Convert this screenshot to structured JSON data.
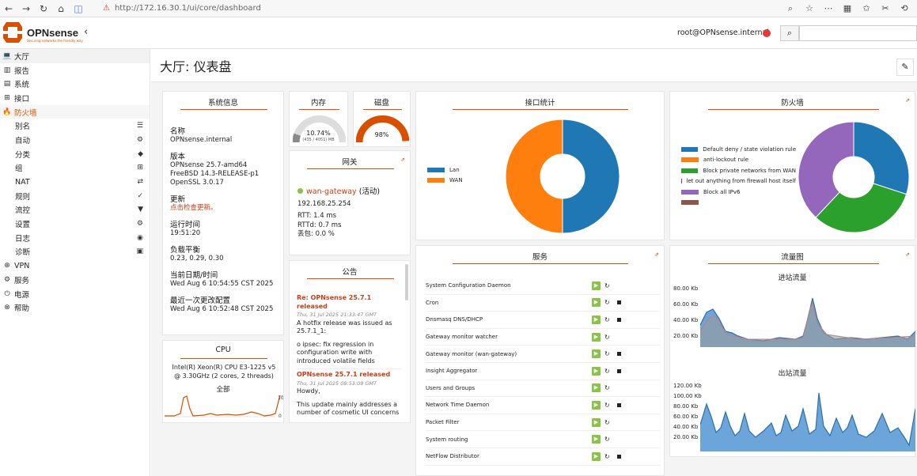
{
  "browser": {
    "url": "http://172.16.30.1/ui/core/dashboard"
  },
  "header": {
    "brand": "OPNsense",
    "tagline": "Securing networks the friendly way",
    "user": "root@OPNsense.internal"
  },
  "sidebar": {
    "items": [
      {
        "label": "大厅",
        "icon": "laptop-icon",
        "glyph": "💻"
      },
      {
        "label": "报告",
        "icon": "chart-icon",
        "glyph": "▥"
      },
      {
        "label": "系统",
        "icon": "server-icon",
        "glyph": "▤"
      },
      {
        "label": "接口",
        "icon": "network-icon",
        "glyph": "⊞"
      },
      {
        "label": "防火墙",
        "icon": "fire-icon",
        "glyph": "🔥"
      }
    ],
    "sub": [
      {
        "label": "别名",
        "icon": "list-icon",
        "glyph": "☰"
      },
      {
        "label": "自动",
        "icon": "cog-icon",
        "glyph": "⚙"
      },
      {
        "label": "分类",
        "icon": "tag-icon",
        "glyph": "◆"
      },
      {
        "label": "组",
        "icon": "sitemap-icon",
        "glyph": "⊞"
      },
      {
        "label": "NAT",
        "icon": "exchange-icon",
        "glyph": "⇄"
      },
      {
        "label": "规则",
        "icon": "check-icon",
        "glyph": "✓"
      },
      {
        "label": "流控",
        "icon": "filter-icon",
        "glyph": "▼"
      },
      {
        "label": "设置",
        "icon": "cogs-icon",
        "glyph": "⚙"
      },
      {
        "label": "日志",
        "icon": "eye-icon",
        "glyph": "◉"
      },
      {
        "label": "诊断",
        "icon": "medkit-icon",
        "glyph": "▣"
      }
    ],
    "bottom": [
      {
        "label": "VPN",
        "icon": "globe-icon",
        "glyph": "⊕"
      },
      {
        "label": "服务",
        "icon": "cog-icon",
        "glyph": "⚙"
      },
      {
        "label": "电源",
        "icon": "plug-icon",
        "glyph": "⏻"
      },
      {
        "label": "帮助",
        "icon": "lifebuoy-icon",
        "glyph": "⊗"
      }
    ]
  },
  "page": {
    "title": "大厅: 仪表盘"
  },
  "sysinfo": {
    "title": "系统信息",
    "name_label": "名称",
    "name": "OPNsense.internal",
    "version_label": "版本",
    "version1": "OPNsense 25.7-amd64",
    "version2": "FreeBSD 14.3-RELEASE-p1",
    "version3": "OpenSSL 3.0.17",
    "update_label": "更新",
    "update": "点击检查更新。",
    "uptime_label": "运行时间",
    "uptime": "19:51:20",
    "load_label": "负载平衡",
    "load": "0.23, 0.29, 0.30",
    "datetime_label": "当前日期/时间",
    "datetime": "Wed Aug 6 10:54:55 CST 2025",
    "lastcfg_label": "最近一次更改配置",
    "lastcfg": "Wed Aug 6 10:52:48 CST 2025"
  },
  "memory": {
    "title": "内存",
    "pct": "10.74%",
    "detail": "(435 / 4051) MB",
    "fraction": 0.1074
  },
  "disk": {
    "title": "磁盘",
    "pct": "98%",
    "fraction": 0.98
  },
  "gateway": {
    "title": "网关",
    "name": "wan-gateway",
    "status": "(活动)",
    "ip": "192.168.25.254",
    "rtt": "RTT: 1.4 ms",
    "rttd": "RTTd: 0.7 ms",
    "loss": "丢包: 0.0 %"
  },
  "cpu": {
    "title": "CPU",
    "model": "Intel(R) Xeon(R) CPU E3-1225 v5 @ 3.30GHz (2 cores, 2 threads)",
    "sub": "全部",
    "ymax": "10",
    "ymin": "0"
  },
  "announce": {
    "title": "公告",
    "items": [
      {
        "title": "Re: OPNsense 25.7.1 released",
        "date": "Thu, 31 Jul 2025 21:33:47 GMT",
        "body1": "A hotfix release was issued as 25.7.1_1:",
        "body2": "o ipsec: fix regression in configuration write with introduced volatile fields"
      },
      {
        "title": "OPNsense 25.7.1 released",
        "date": "Thu, 31 Jul 2025 08:53:09 GMT",
        "body1": "Howdy,",
        "body2": "This update mainly addresses a number of cosmetic UI concerns"
      }
    ]
  },
  "iface": {
    "title": "接口统计",
    "legend": [
      {
        "name": "Lan",
        "color": "#1f77b4"
      },
      {
        "name": "WAN",
        "color": "#ff7f0e"
      }
    ],
    "values": [
      50,
      50
    ]
  },
  "firewall": {
    "title": "防火墙",
    "legend": [
      {
        "name": "Default deny / state violation rule",
        "color": "#1f77b4"
      },
      {
        "name": "anti-lockout rule",
        "color": "#ff7f0e"
      },
      {
        "name": "Block private networks from WAN",
        "color": "#2ca02c"
      },
      {
        "name": "let out anything from firewall host itself",
        "color": "#d62728"
      },
      {
        "name": "Block all IPv6",
        "color": "#9467bd"
      },
      {
        "name": "",
        "color": "#8c564b"
      }
    ],
    "values": [
      30,
      0,
      32,
      0,
      38,
      0
    ]
  },
  "services": {
    "title": "服务",
    "rows": [
      {
        "name": "System Configuration Daemon",
        "stop": false
      },
      {
        "name": "Cron",
        "stop": true
      },
      {
        "name": "Dnsmasq DNS/DHCP",
        "stop": true
      },
      {
        "name": "Gateway monitor watcher",
        "stop": false
      },
      {
        "name": "Gateway monitor (wan-gateway)",
        "stop": true
      },
      {
        "name": "Insight Aggregator",
        "stop": true
      },
      {
        "name": "Users and Groups",
        "stop": false
      },
      {
        "name": "Network Time Daemon",
        "stop": true
      },
      {
        "name": "Packet Filter",
        "stop": false
      },
      {
        "name": "System routing",
        "stop": false
      },
      {
        "name": "NetFlow Distributor",
        "stop": true
      }
    ]
  },
  "traffic": {
    "title": "流量图",
    "in_title": "进站流量",
    "in_ticks": [
      "80.00 Kb",
      "60.00 Kb",
      "40.00 Kb",
      "20.00 Kb"
    ],
    "out_title": "出站流量",
    "out_ticks": [
      "120.00 Kb",
      "100.00 Kb",
      "80.00 Kb",
      "60.00 Kb",
      "40.00 Kb",
      "20.00 Kb"
    ]
  },
  "colors": {
    "accent": "#d94f00",
    "blue": "#1f77b4",
    "orange": "#ff7f0e"
  }
}
